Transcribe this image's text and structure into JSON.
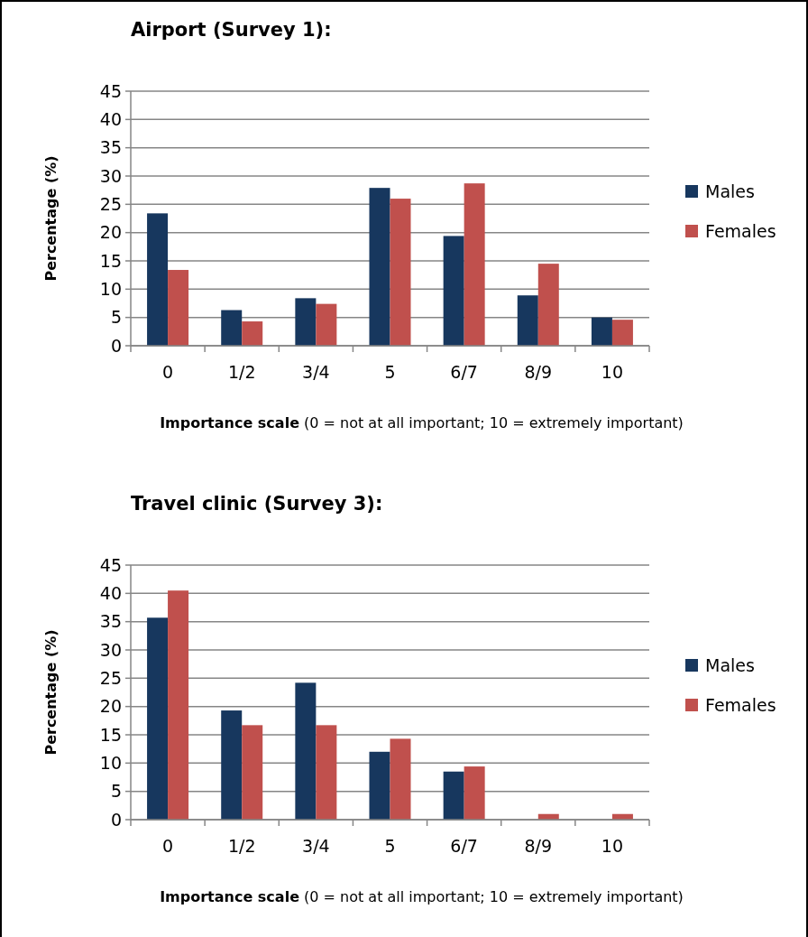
{
  "chart_data": [
    {
      "type": "bar",
      "title": "Airport (Survey 1):",
      "ylabel": "Percentage (%)",
      "xlabel": "**Importance scale** (0 = not at all important; 10 = extremely important)",
      "categories": [
        "0",
        "1/2",
        "3/4",
        "5",
        "6/7",
        "8/9",
        "10"
      ],
      "series": [
        {
          "name": "Males",
          "color": "#17375e",
          "values": [
            23.4,
            6.3,
            8.4,
            27.9,
            19.4,
            8.9,
            5.0
          ]
        },
        {
          "name": "Females",
          "color": "#c0504d",
          "values": [
            13.4,
            4.3,
            7.4,
            26.0,
            28.7,
            14.5,
            4.6
          ]
        }
      ],
      "ylim": [
        0,
        45
      ],
      "yticks": [
        0,
        5,
        10,
        15,
        20,
        25,
        30,
        35,
        40,
        45
      ],
      "grid": "y",
      "legend": "right"
    },
    {
      "type": "bar",
      "title": "Travel clinic (Survey 3):",
      "ylabel": "Percentage (%)",
      "xlabel": "**Importance scale** (0 = not at all important; 10 = extremely important)",
      "categories": [
        "0",
        "1/2",
        "3/4",
        "5",
        "6/7",
        "8/9",
        "10"
      ],
      "series": [
        {
          "name": "Males",
          "color": "#17375e",
          "values": [
            35.7,
            19.3,
            24.2,
            12.0,
            8.5,
            0,
            0
          ]
        },
        {
          "name": "Females",
          "color": "#c0504d",
          "values": [
            40.5,
            16.7,
            16.7,
            14.3,
            9.4,
            1.0,
            1.0
          ]
        }
      ],
      "ylim": [
        0,
        45
      ],
      "yticks": [
        0,
        5,
        10,
        15,
        20,
        25,
        30,
        35,
        40,
        45
      ],
      "grid": "y",
      "legend": "right"
    }
  ]
}
